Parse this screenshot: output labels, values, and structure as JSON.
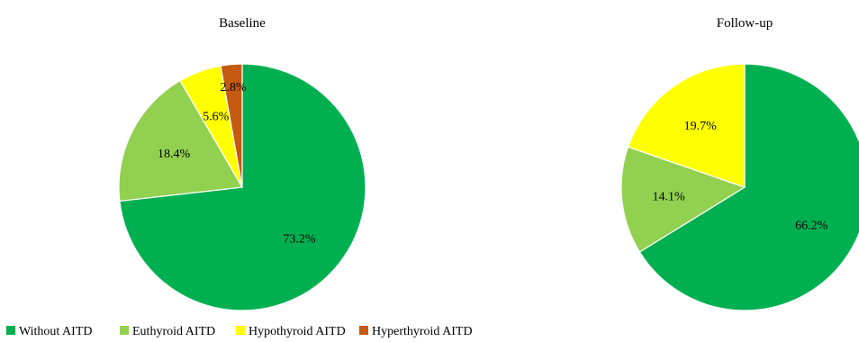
{
  "colors": {
    "Without AITD": "#00b050",
    "Euthyroid AITD": "#92d050",
    "Hypothyroid AITD": "#ffff00",
    "Hyperthyroid AITD": "#c55a11"
  },
  "chart_data": [
    {
      "type": "pie",
      "title": "Baseline",
      "slices": [
        {
          "name": "Without AITD",
          "value": 73.2,
          "label": "73.2%"
        },
        {
          "name": "Euthyroid AITD",
          "value": 18.4,
          "label": "18.4%"
        },
        {
          "name": "Hypothyroid AITD",
          "value": 5.6,
          "label": "5.6%"
        },
        {
          "name": "Hyperthyroid AITD",
          "value": 2.8,
          "label": "2.8%"
        }
      ],
      "start": "12 o'clock",
      "direction": "clockwise",
      "legend": "bottom-left"
    },
    {
      "type": "pie",
      "title": "Follow-up",
      "slices": [
        {
          "name": "Without AITD",
          "value": 66.2,
          "label": "66.2%"
        },
        {
          "name": "Euthyroid AITD",
          "value": 14.1,
          "label": "14.1%"
        },
        {
          "name": "Hypothyroid AITD",
          "value": 19.7,
          "label": "19.7%"
        }
      ],
      "start": "12 o'clock",
      "direction": "clockwise"
    }
  ],
  "legend": {
    "items": [
      "Without AITD",
      "Euthyroid AITD",
      "Hypothyroid AITD",
      "Hyperthyroid AITD"
    ]
  }
}
